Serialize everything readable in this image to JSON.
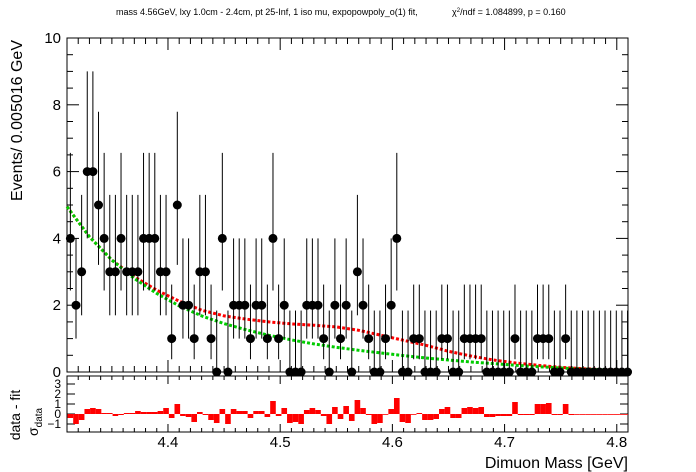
{
  "header": {
    "title": "mass 4.56GeV, lxy 1.0cm - 2.4cm, pt 25-Inf, 1 iso mu, expopowpoly_o(1) fit,",
    "chi2_prefix": "χ",
    "chi2_sup": "2",
    "chi2_suffix": "/ndf = 1.084899, p = 0.160"
  },
  "chart_data": [
    {
      "type": "scatter",
      "name": "main",
      "xlabel": "Dimuon Mass [GeV]",
      "ylabel": "Events/ 0.005016 GeV",
      "xlim": [
        4.31,
        4.81
      ],
      "ylim": [
        0,
        10
      ],
      "x_ticks": [
        "4.4",
        "4.5",
        "4.6",
        "4.7",
        "4.8"
      ],
      "y_ticks": [
        "0",
        "2",
        "4",
        "6",
        "8",
        "10"
      ],
      "bin_start": 4.3105,
      "bin_width": 0.005016,
      "counts": [
        4,
        2,
        3,
        6,
        6,
        5,
        4,
        3,
        3,
        4,
        3,
        3,
        3,
        4,
        4,
        4,
        3,
        3,
        1,
        5,
        2,
        2,
        1,
        3,
        3,
        1,
        0,
        4,
        0,
        2,
        2,
        2,
        1,
        2,
        2,
        1,
        4,
        1,
        2,
        0,
        0,
        0,
        2,
        2,
        2,
        1,
        0,
        2,
        1,
        2,
        0,
        3,
        2,
        1,
        0,
        0,
        1,
        2,
        4,
        0,
        0,
        1,
        1,
        0,
        0,
        0,
        1,
        1,
        0,
        0,
        1,
        1,
        1,
        1,
        0,
        0,
        0,
        0,
        0,
        1,
        0,
        0,
        0,
        1,
        1,
        1,
        0,
        0,
        1,
        0,
        0,
        0,
        0,
        0,
        0,
        0,
        0,
        0,
        0,
        0
      ],
      "series": [
        {
          "name": "fit",
          "color": "#ff0000",
          "style": "dashed",
          "x": [
            4.31,
            4.33,
            4.35,
            4.37,
            4.39,
            4.41,
            4.43,
            4.45,
            4.47,
            4.49,
            4.51,
            4.53,
            4.55,
            4.57,
            4.59,
            4.61,
            4.63,
            4.65,
            4.67,
            4.69,
            4.71,
            4.73,
            4.75,
            4.77,
            4.79,
            4.81
          ],
          "y": [
            4.95,
            4.05,
            3.35,
            2.85,
            2.45,
            2.12,
            1.85,
            1.68,
            1.58,
            1.5,
            1.44,
            1.4,
            1.35,
            1.25,
            1.1,
            0.95,
            0.8,
            0.62,
            0.48,
            0.36,
            0.27,
            0.2,
            0.14,
            0.1,
            0.07,
            0.05
          ]
        },
        {
          "name": "background",
          "color": "#00cc00",
          "style": "dashed",
          "x": [
            4.31,
            4.33,
            4.35,
            4.37,
            4.39,
            4.41,
            4.43,
            4.45,
            4.47,
            4.49,
            4.51,
            4.53,
            4.55,
            4.57,
            4.59,
            4.61,
            4.63,
            4.65,
            4.67,
            4.69,
            4.71,
            4.73,
            4.75,
            4.77,
            4.79,
            4.81
          ],
          "y": [
            4.95,
            4.05,
            3.35,
            2.8,
            2.35,
            1.98,
            1.68,
            1.45,
            1.26,
            1.1,
            0.96,
            0.84,
            0.74,
            0.65,
            0.57,
            0.49,
            0.42,
            0.36,
            0.3,
            0.25,
            0.2,
            0.16,
            0.12,
            0.09,
            0.06,
            0.04
          ]
        }
      ],
      "marker_color": "#000000"
    },
    {
      "type": "bar",
      "name": "pull",
      "ylabel_main": "data - fit",
      "ylabel_sigma": "σ",
      "ylabel_sub": "data",
      "xlim": [
        4.31,
        4.81
      ],
      "ylim": [
        -1.8,
        3.8
      ],
      "y_ticks": [
        "−1",
        "0",
        "1",
        "2",
        "3"
      ],
      "color": "#ff0000",
      "values": [
        -0.4,
        -1.0,
        -0.6,
        0.5,
        0.6,
        0.5,
        0.1,
        0.1,
        -0.2,
        -0.1,
        0.1,
        0.1,
        0.3,
        0.2,
        0.2,
        0.2,
        0.3,
        0.6,
        -0.4,
        1.0,
        -0.2,
        -0.3,
        -0.8,
        0.2,
        -0.1,
        -0.6,
        -0.9,
        0.5,
        -1.0,
        0.5,
        0.3,
        0.3,
        -0.4,
        0.3,
        0.3,
        -0.3,
        1.3,
        -0.2,
        0.6,
        -0.9,
        -0.8,
        -1.0,
        0.4,
        0.6,
        0.4,
        -0.2,
        -1.0,
        0.7,
        -0.5,
        0.8,
        -0.7,
        1.4,
        0.6,
        -0.1,
        -1.0,
        -0.9,
        0.0,
        0.5,
        1.6,
        -0.8,
        -0.9,
        0.0,
        0.1,
        -0.6,
        -0.6,
        -0.5,
        0.5,
        0.7,
        -0.4,
        -0.4,
        0.6,
        0.7,
        0.6,
        0.7,
        -0.3,
        -0.3,
        -0.2,
        -0.2,
        -0.2,
        1.2,
        -0.1,
        -0.1,
        -0.1,
        1.0,
        1.0,
        1.1,
        -0.1,
        -0.1,
        1.0,
        -0.1,
        0.0,
        0.0,
        0.0,
        0.0,
        0.0,
        0.0,
        0.0,
        0.0,
        0.0,
        0.0
      ]
    }
  ]
}
